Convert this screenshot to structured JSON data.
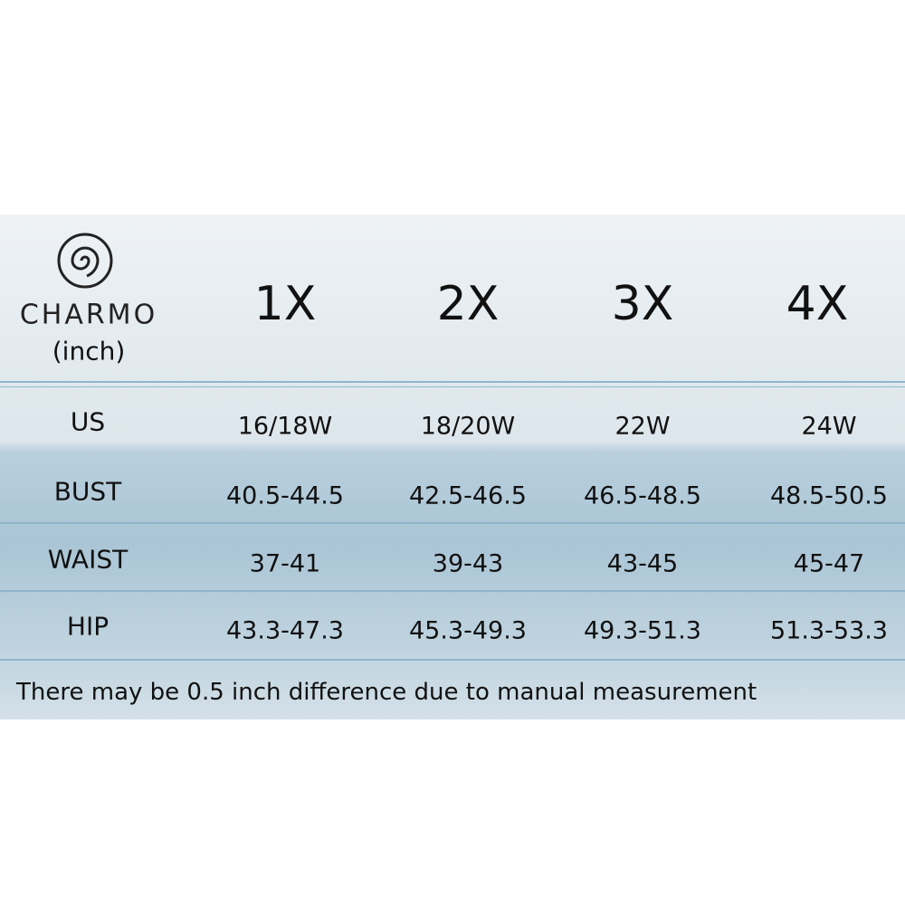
{
  "brand": "CHARMO",
  "unit": "(inch)",
  "table": {
    "header": [
      "1X",
      "2X",
      "3X",
      "4X"
    ],
    "rows": [
      [
        "US",
        "16/18W",
        "18/20W",
        "22W",
        "24W"
      ],
      [
        "BUST",
        "40.5-44.5",
        "42.5-46.5",
        "46.5-48.5",
        "48.5-50.5"
      ],
      [
        "WAIST",
        "37-41",
        "39-43",
        "43-45",
        "45-47"
      ],
      [
        "HIP",
        "43.3-47.3",
        "45.3-49.3",
        "49.3-51.3",
        "51.3-53.3"
      ]
    ]
  },
  "note": "There may be 0.5 inch difference due to manual measurement"
}
